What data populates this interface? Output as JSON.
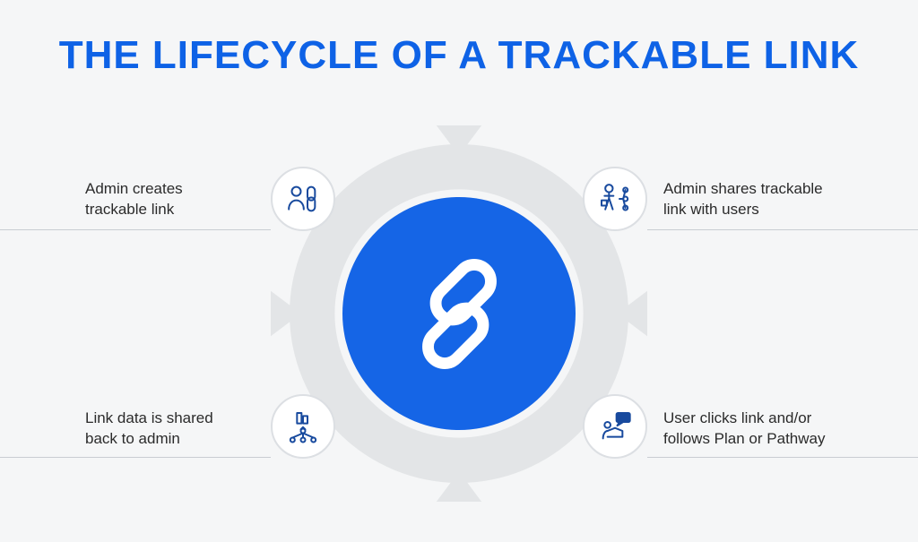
{
  "infographic": {
    "type": "infographic",
    "background_color": "#f5f6f7",
    "title": "THE LIFECYCLE OF A TRACKABLE LINK",
    "title_color": "#0e62e6",
    "title_fontsize": 44,
    "cycle_arrow_color": "#e3e5e7",
    "center": {
      "fill": "#1565e6",
      "icon_color": "#ffffff",
      "diameter": 260
    },
    "node_circle": {
      "diameter": 72,
      "fill": "#ffffff",
      "border_color": "#dcdfe3",
      "border_width": 2,
      "icon_color": "#184a9e"
    },
    "label_color": "#2b2b2b",
    "label_fontsize": 17,
    "rule_color": "#c9cdd2",
    "steps": [
      {
        "id": "create",
        "line1": "Admin creates",
        "line2": "trackable link"
      },
      {
        "id": "share",
        "line1": "Admin shares trackable",
        "line2": "link with users"
      },
      {
        "id": "click",
        "line1": "User clicks link and/or",
        "line2": "follows Plan or Pathway"
      },
      {
        "id": "feedback",
        "line1": "Link data is shared",
        "line2": "back to admin"
      }
    ]
  }
}
